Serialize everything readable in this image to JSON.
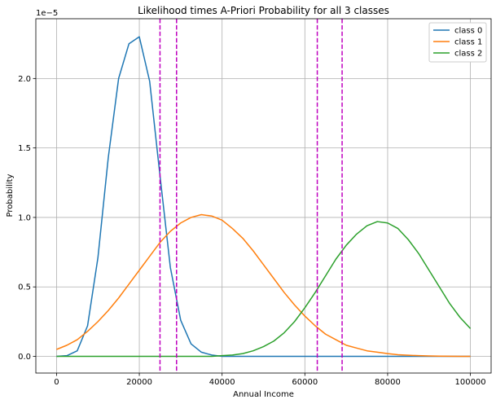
{
  "chart_data": {
    "type": "line",
    "title": "Likelihood times A-Priori Probability for all 3 classes",
    "xlabel": "Annual Income",
    "ylabel": "Probability",
    "y_offset_label": "1e−5",
    "y_scale_multiplier": 1e-05,
    "xlim": [
      -5000,
      105000
    ],
    "ylim": [
      -0.12,
      2.43
    ],
    "x_ticks": [
      0,
      20000,
      40000,
      60000,
      80000,
      100000
    ],
    "x_tick_labels": [
      "0",
      "20000",
      "40000",
      "60000",
      "80000",
      "100000"
    ],
    "y_ticks": [
      0.0,
      0.5,
      1.0,
      1.5,
      2.0
    ],
    "y_tick_labels": [
      "0.0",
      "0.5",
      "1.0",
      "1.5",
      "2.0"
    ],
    "grid": true,
    "legend_position": "top-right",
    "x": [
      0,
      2500,
      5000,
      7500,
      10000,
      12500,
      15000,
      17500,
      20000,
      22500,
      25000,
      27500,
      30000,
      32500,
      35000,
      37500,
      40000,
      42500,
      45000,
      47500,
      50000,
      52500,
      55000,
      57500,
      60000,
      62500,
      65000,
      67500,
      70000,
      72500,
      75000,
      77500,
      80000,
      82500,
      85000,
      87500,
      90000,
      92500,
      95000,
      97500,
      100000
    ],
    "series": [
      {
        "name": "class 0",
        "color": "#1f77b4",
        "values": [
          0.0,
          0.005,
          0.04,
          0.22,
          0.71,
          1.43,
          2.0,
          2.25,
          2.3,
          1.98,
          1.3,
          0.64,
          0.26,
          0.09,
          0.03,
          0.01,
          0.0,
          0.0,
          0.0,
          0.0,
          0.0,
          0.0,
          0.0,
          0.0,
          0.0,
          0.0,
          0.0,
          0.0,
          0.0,
          0.0,
          0.0,
          0.0,
          0.0,
          0.0,
          0.0,
          0.0,
          0.0,
          0.0,
          0.0,
          0.0,
          0.0
        ]
      },
      {
        "name": "class 1",
        "color": "#ff7f0e",
        "values": [
          0.05,
          0.08,
          0.12,
          0.18,
          0.25,
          0.33,
          0.42,
          0.52,
          0.62,
          0.72,
          0.82,
          0.9,
          0.96,
          1.0,
          1.02,
          1.01,
          0.98,
          0.92,
          0.85,
          0.76,
          0.66,
          0.56,
          0.46,
          0.37,
          0.29,
          0.22,
          0.16,
          0.12,
          0.08,
          0.06,
          0.04,
          0.03,
          0.02,
          0.012,
          0.008,
          0.005,
          0.003,
          0.002,
          0.001,
          0.0,
          0.0
        ]
      },
      {
        "name": "class 2",
        "color": "#2ca02c",
        "values": [
          0.0,
          0.0,
          0.0,
          0.0,
          0.0,
          0.0,
          0.0,
          0.0,
          0.0,
          0.0,
          0.0,
          0.0,
          0.0,
          0.0,
          0.0,
          0.0,
          0.005,
          0.01,
          0.02,
          0.04,
          0.07,
          0.11,
          0.17,
          0.25,
          0.35,
          0.46,
          0.58,
          0.7,
          0.8,
          0.88,
          0.94,
          0.97,
          0.96,
          0.92,
          0.84,
          0.74,
          0.62,
          0.5,
          0.38,
          0.28,
          0.2
        ]
      }
    ],
    "vertical_lines": [
      {
        "x": 25000,
        "color": "#bf00bf",
        "style": "dashed"
      },
      {
        "x": 29000,
        "color": "#bf00bf",
        "style": "dashed"
      },
      {
        "x": 63000,
        "color": "#bf00bf",
        "style": "dashed"
      },
      {
        "x": 69000,
        "color": "#bf00bf",
        "style": "dashed"
      }
    ]
  }
}
